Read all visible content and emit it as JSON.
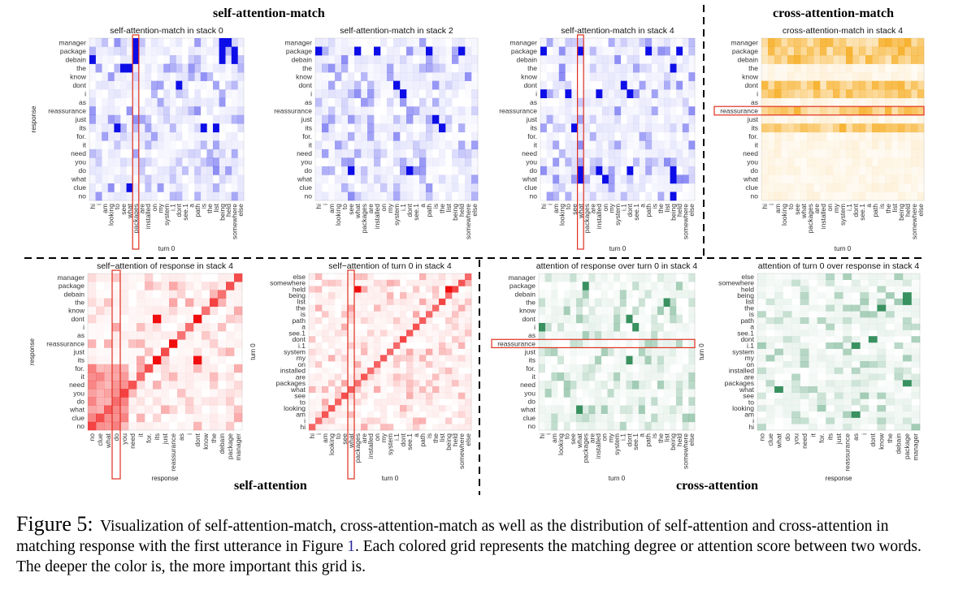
{
  "sections": {
    "self_attention_match": "self-attention-match",
    "cross_attention_match": "cross-attention-match",
    "self_attention": "self-attention",
    "cross_attention": "cross-attention"
  },
  "caption": {
    "figure_label": "Figure 5:",
    "text_before_ref": "Visualization of self-attention-match, cross-attention-match as well as the distribution of self-attention and cross-attention in matching response with the first utterance in Figure",
    "ref": "1",
    "text_after_ref": ". Each colored grid represents the matching degree or attention score between two words. The deeper the color is, the more important this grid is."
  },
  "colors": {
    "blue": "#0000e6",
    "orange": "#f5a000",
    "red": "#f00000",
    "green": "#2e8b57",
    "highlight": "#e03020",
    "grid": "#ececec"
  },
  "chart_data": [
    {
      "type": "heatmap",
      "id": "sam0",
      "title": "self-attention-match in stack 0",
      "xlabel": "turn 0",
      "ylabel": "response",
      "color": "blue",
      "rows": "response",
      "cols": "turn0",
      "highlight": {
        "axis": "col",
        "label": "packages"
      },
      "strong": [
        [
          "manager",
          "packages"
        ],
        [
          "package",
          "packages"
        ],
        [
          "debain",
          "packages"
        ],
        [
          "the",
          "see"
        ],
        [
          "the",
          "what"
        ],
        [
          "its",
          "to"
        ],
        [
          "clue",
          "what"
        ],
        [
          "manager",
          "being"
        ],
        [
          "package",
          "being"
        ],
        [
          "debain",
          "being"
        ],
        [
          "package",
          "somewhere"
        ],
        [
          "debain",
          "somewhere"
        ],
        [
          "manager",
          "held"
        ],
        [
          "its",
          "is"
        ],
        [
          "its",
          "list"
        ],
        [
          "dont",
          "dont"
        ],
        [
          "debain",
          "hi"
        ]
      ]
    },
    {
      "type": "heatmap",
      "id": "sam2",
      "title": "self-attention-match in stack 2",
      "xlabel": "",
      "ylabel": "",
      "color": "blue",
      "rows": "response",
      "cols": "turn0",
      "strong": [
        [
          "package",
          "hi"
        ],
        [
          "package",
          "what"
        ],
        [
          "package",
          "installed"
        ],
        [
          "package",
          "path"
        ],
        [
          "package",
          "held"
        ],
        [
          "dont",
          "system"
        ],
        [
          "i",
          "i.1"
        ],
        [
          "just",
          "is"
        ],
        [
          "do",
          "see"
        ],
        [
          "do",
          "dont"
        ],
        [
          "its",
          "the"
        ]
      ]
    },
    {
      "type": "heatmap",
      "id": "sam4",
      "title": "self-attention-match in stack 4",
      "xlabel": "turn 0",
      "ylabel": "",
      "color": "blue",
      "rows": "response",
      "cols": "turn0",
      "highlight": {
        "axis": "col",
        "label": "what"
      },
      "strong": [
        [
          "package",
          "hi"
        ],
        [
          "package",
          "what"
        ],
        [
          "package",
          "path"
        ],
        [
          "package",
          "held"
        ],
        [
          "i",
          "hi"
        ],
        [
          "i",
          "to"
        ],
        [
          "i",
          "installed"
        ],
        [
          "i",
          "dont"
        ],
        [
          "dont",
          "i.1"
        ],
        [
          "the",
          "being"
        ],
        [
          "do",
          "what"
        ],
        [
          "do",
          "installed"
        ],
        [
          "do",
          "dont"
        ],
        [
          "do",
          "being"
        ],
        [
          "what",
          "what"
        ],
        [
          "what",
          "on"
        ],
        [
          "what",
          "being"
        ],
        [
          "no",
          "being"
        ],
        [
          "its",
          "see"
        ]
      ]
    },
    {
      "type": "heatmap",
      "id": "cam4",
      "title": "cross-attention-match in stack 4",
      "xlabel": "turn 0",
      "ylabel": "",
      "color": "orange",
      "rows": "response",
      "cols": "turn0",
      "highlight": {
        "axis": "row",
        "label": "reassurance"
      },
      "strong_rows": [
        "manager",
        "package",
        "debain",
        "dont",
        "i",
        "reassurance",
        "its"
      ]
    },
    {
      "type": "heatmap",
      "id": "sar4",
      "title": "self−attention of response in stack 4",
      "xlabel": "response",
      "ylabel": "response",
      "color": "red",
      "rows": "response",
      "cols": "response_rev",
      "highlight": {
        "axis": "col",
        "label": "do"
      },
      "strong": [
        [
          "dont",
          "its"
        ],
        [
          "dont",
          "dont"
        ],
        [
          "its",
          "its"
        ],
        [
          "its",
          "dont"
        ],
        [
          "reassurance",
          "reassurance"
        ]
      ]
    },
    {
      "type": "heatmap",
      "id": "sat4",
      "title": "self−attention of turn 0 in stack 4",
      "xlabel": "turn 0",
      "ylabel": "turn 0",
      "color": "red",
      "rows": "turn0_rev",
      "cols": "turn0",
      "highlight": {
        "axis": "col",
        "label": "what"
      },
      "strong": [
        [
          "held",
          "packages"
        ],
        [
          "held",
          "being"
        ]
      ]
    },
    {
      "type": "heatmap",
      "id": "art4",
      "title": "attention of response over turn 0 in stack 4",
      "xlabel": "turn 0",
      "ylabel": "",
      "color": "green",
      "rows": "response",
      "cols": "turn0",
      "highlight": {
        "axis": "row",
        "label": "reassurance"
      },
      "strong": [
        [
          "package",
          "packages"
        ],
        [
          "the",
          "list"
        ],
        [
          "dont",
          "dont"
        ],
        [
          "i",
          "hi"
        ],
        [
          "i",
          "see.1"
        ],
        [
          "its",
          "dont"
        ],
        [
          "what",
          "what"
        ]
      ]
    },
    {
      "type": "heatmap",
      "id": "atr4",
      "title": "attention of turn 0 over response in stack 4",
      "xlabel": "response",
      "ylabel": "turn 0",
      "color": "green",
      "rows": "turn0_rev",
      "cols": "response_rev",
      "strong": [
        [
          "being",
          "package"
        ],
        [
          "list",
          "package"
        ],
        [
          "the",
          "know"
        ],
        [
          "dont",
          "dont"
        ],
        [
          "i.1",
          "as"
        ],
        [
          "packages",
          "package"
        ],
        [
          "what",
          "what"
        ],
        [
          "am",
          "as"
        ]
      ]
    }
  ],
  "labels": {
    "response": [
      "manager",
      "package",
      "debain",
      "the",
      "know",
      "dont",
      "i",
      "as",
      "reassurance",
      "just",
      "its",
      "for.",
      "it",
      "need",
      "you",
      "do",
      "what",
      "clue",
      "no"
    ],
    "turn0": [
      "hi",
      "i",
      "am",
      "looking",
      "to",
      "see",
      "what",
      "packages",
      "are",
      "installed",
      "on",
      "my",
      "system",
      "i.1",
      "dont",
      "see.1",
      "a",
      "path",
      "is",
      "the",
      "list",
      "being",
      "held",
      "somewhere",
      "else"
    ],
    "response_rev": [
      "no",
      "clue",
      "what",
      "do",
      "you",
      "need",
      "it",
      "for.",
      "its",
      "just",
      "reassurance",
      "as",
      "i",
      "dont",
      "know",
      "the",
      "debain",
      "package",
      "manager"
    ],
    "turn0_rev": [
      "else",
      "somewhere",
      "held",
      "being",
      "list",
      "the",
      "is",
      "path",
      "a",
      "see.1",
      "dont",
      "i.1",
      "system",
      "my",
      "on",
      "installed",
      "are",
      "packages",
      "what",
      "see",
      "to",
      "looking",
      "am",
      "i",
      "hi"
    ]
  }
}
